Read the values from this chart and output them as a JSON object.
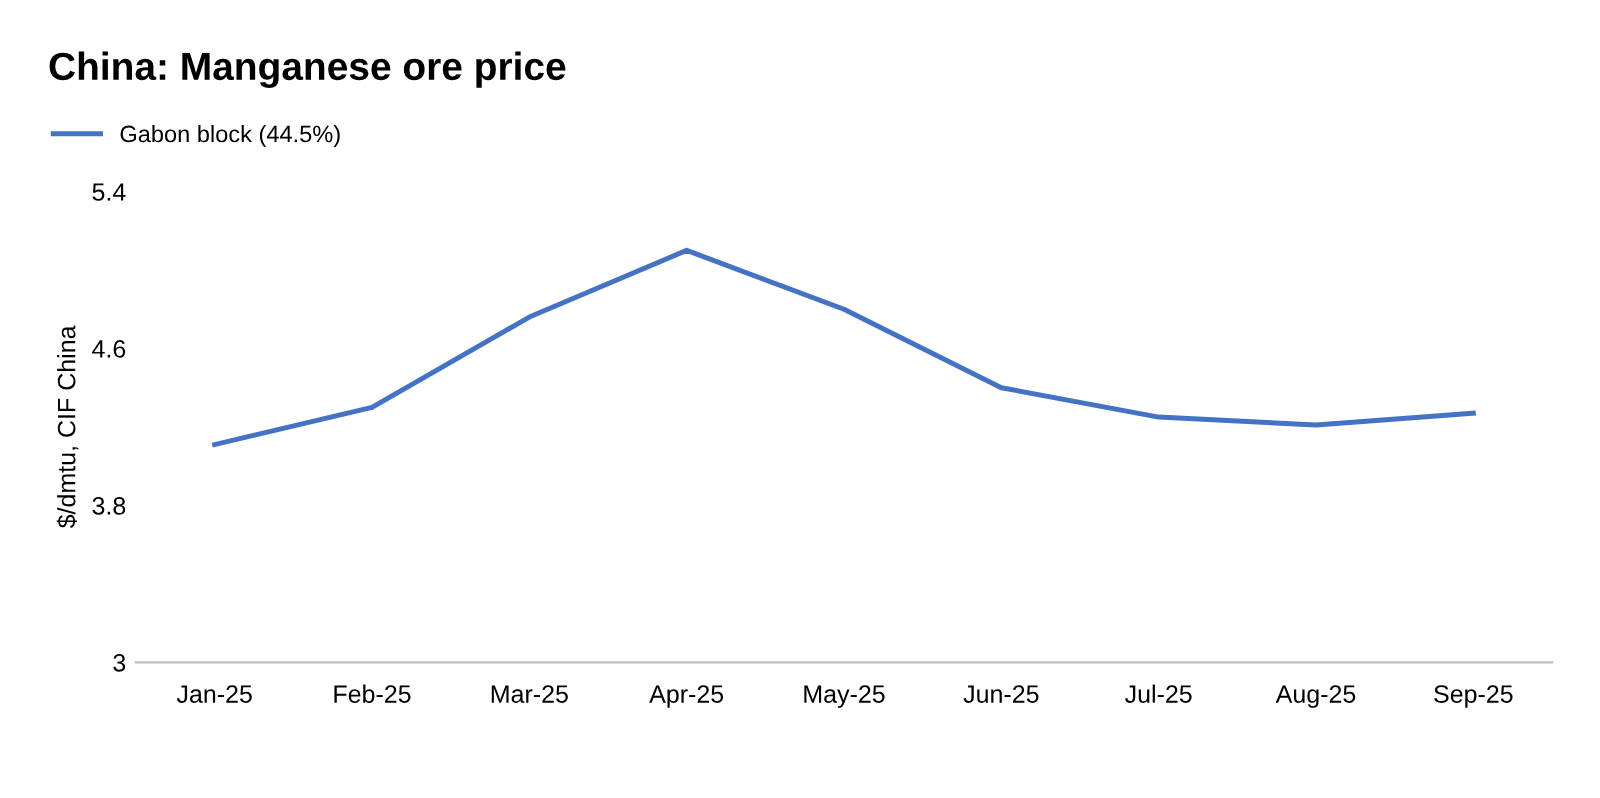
{
  "chart_data": {
    "type": "line",
    "title": "China: Manganese ore price",
    "ylabel": "$/dmtu, CIF China",
    "categories": [
      "Jan-25",
      "Feb-25",
      "Mar-25",
      "Apr-25",
      "May-25",
      "Jun-25",
      "Jul-25",
      "Aug-25",
      "Sep-25"
    ],
    "series": [
      {
        "name": "Gabon block (44.5%)",
        "color": "#4472c4",
        "values": [
          4.11,
          4.3,
          4.76,
          5.1,
          4.8,
          4.4,
          4.25,
          4.21,
          4.27
        ]
      }
    ],
    "ylim": [
      3,
      5.4
    ],
    "yticks": [
      3,
      3.8,
      4.6,
      5.4
    ],
    "grid": false,
    "legend": "top left",
    "marker": "none",
    "line_style": "solid"
  }
}
